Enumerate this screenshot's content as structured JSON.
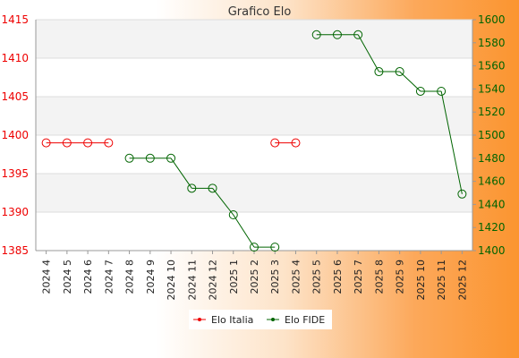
{
  "chart_data": {
    "type": "line",
    "title": "Grafico Elo",
    "categories": [
      "2024 4",
      "2024 5",
      "2024 6",
      "2024 7",
      "2024 8",
      "2024 9",
      "2024 10",
      "2024 11",
      "2024 12",
      "2025 1",
      "2025 2",
      "2025 3",
      "2025 4",
      "2025 5",
      "2025 6",
      "2025 7",
      "2025 8",
      "2025 9",
      "2025 10",
      "2025 11",
      "2025 12"
    ],
    "y_left": {
      "range": [
        1385,
        1415
      ],
      "ticks": [
        1385,
        1390,
        1395,
        1400,
        1405,
        1410,
        1415
      ]
    },
    "y_right": {
      "range": [
        1400,
        1600
      ],
      "ticks": [
        1400,
        1420,
        1440,
        1460,
        1480,
        1500,
        1520,
        1540,
        1560,
        1580,
        1600
      ]
    },
    "grid": true,
    "legend_position": "bottom",
    "series": [
      {
        "name": "Elo Italia",
        "axis": "left",
        "color": "#ee0000",
        "values": [
          1399,
          1399,
          1399,
          1399,
          null,
          null,
          null,
          null,
          null,
          null,
          null,
          1399,
          1399,
          null,
          null,
          null,
          null,
          null,
          null,
          null,
          null
        ]
      },
      {
        "name": "Elo FIDE",
        "axis": "right",
        "color": "#006400",
        "values": [
          null,
          null,
          null,
          null,
          1480,
          1480,
          1480,
          1454,
          1454,
          1431,
          1403,
          1403,
          null,
          1587,
          1587,
          1587,
          1555,
          1555,
          1538,
          1538,
          1449
        ]
      }
    ]
  }
}
